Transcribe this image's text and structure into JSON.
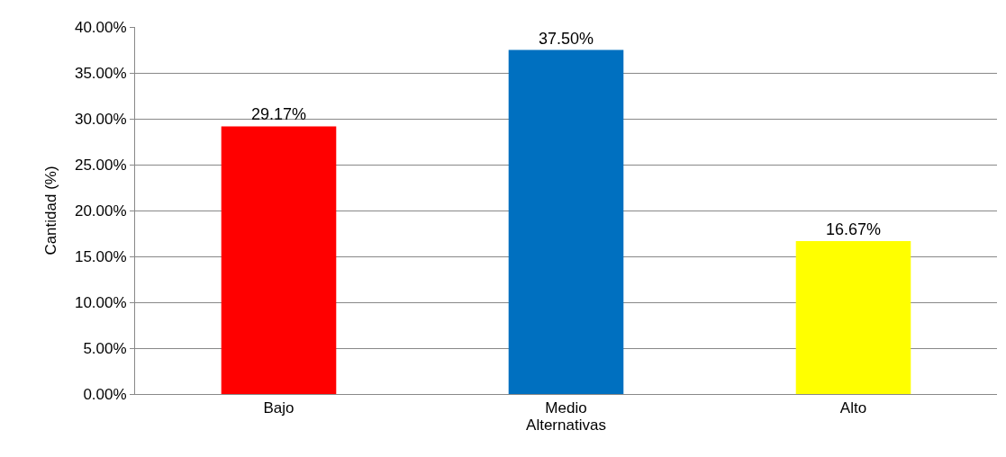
{
  "chart_data": {
    "type": "bar",
    "xlabel": "Alternativas",
    "ylabel": "Cantidad (%)",
    "categories": [
      "Bajo",
      "Medio",
      "Alto"
    ],
    "values": [
      29.17,
      37.5,
      16.67
    ],
    "colors": [
      "#ff0000",
      "#0070c0",
      "#ffff00"
    ],
    "value_labels": [
      "29.17%",
      "37.50%",
      "16.67%"
    ],
    "ylim": [
      0,
      40
    ],
    "yticks": [
      {
        "value": 0,
        "label": "0.00%"
      },
      {
        "value": 5,
        "label": "5.00%"
      },
      {
        "value": 10,
        "label": "10.00%"
      },
      {
        "value": 15,
        "label": "15.00%"
      },
      {
        "value": 20,
        "label": "20.00%"
      },
      {
        "value": 25,
        "label": "25.00%"
      },
      {
        "value": 30,
        "label": "30.00%"
      },
      {
        "value": 35,
        "label": "35.00%"
      },
      {
        "value": 40,
        "label": "40.00%"
      }
    ],
    "grid": "y"
  }
}
